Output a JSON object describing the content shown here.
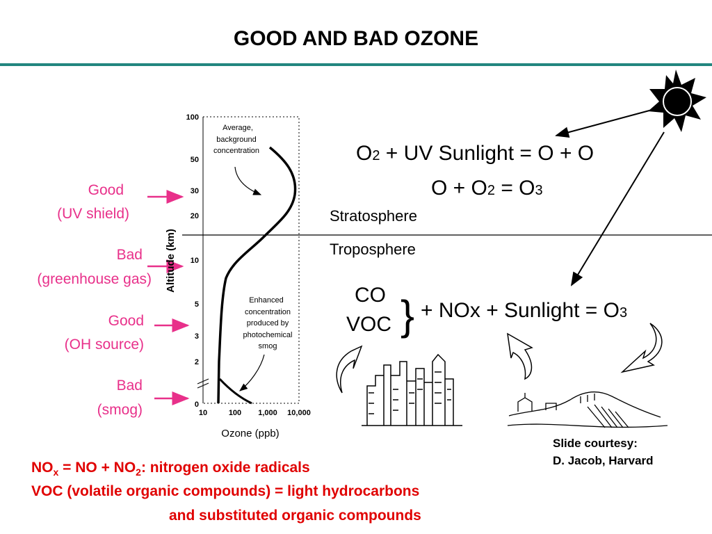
{
  "header": {
    "title": "GOOD AND BAD OZONE"
  },
  "side_labels": [
    {
      "line1": "Good",
      "line2": "(UV shield)"
    },
    {
      "line1": "Bad",
      "line2": "(greenhouse gas)"
    },
    {
      "line1": "Good",
      "line2": "(OH source)"
    },
    {
      "line1": "Bad",
      "line2": "(smog)"
    }
  ],
  "profile": {
    "y_label": "Altitude (km)",
    "x_label": "Ozone (ppb)",
    "y_ticks": [
      "100",
      "50",
      "30",
      "20",
      "10",
      "5",
      "3",
      "2",
      "0"
    ],
    "x_ticks": [
      "10",
      "100",
      "1,000",
      "10,000"
    ],
    "note_top": [
      "Average,",
      "background",
      "concentration"
    ],
    "note_bottom": [
      "Enhanced",
      "concentration",
      "produced by",
      "photochemical",
      "smog"
    ]
  },
  "equations": {
    "line1": [
      "O",
      "2",
      " + UV Sunlight = O + O"
    ],
    "line2": [
      "O + O",
      "2",
      " = O",
      "3"
    ],
    "stratosphere": "Stratosphere",
    "troposphere": "Troposphere",
    "co": "CO",
    "voc": "VOC",
    "line3": [
      "+ NOx + Sunlight = O",
      "3"
    ]
  },
  "credit": [
    "Slide courtesy:",
    "D. Jacob, Harvard"
  ],
  "footnotes": {
    "line1": [
      "NO",
      "x",
      " = NO + NO",
      "2",
      ": nitrogen oxide radicals"
    ],
    "line2": "VOC (volatile organic compounds) = light hydrocarbons",
    "line3": "and substituted organic compounds"
  }
}
